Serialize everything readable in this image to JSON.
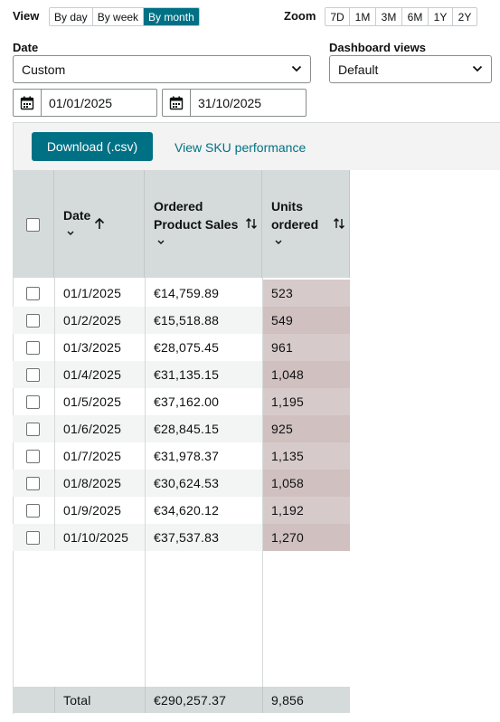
{
  "controls": {
    "view_label": "View",
    "view_options": [
      "By day",
      "By week",
      "By month"
    ],
    "view_active": "By month",
    "zoom_label": "Zoom",
    "zoom_options": [
      "7D",
      "1M",
      "3M",
      "6M",
      "1Y",
      "2Y"
    ],
    "date_label": "Date",
    "date_select_value": "Custom",
    "dashboard_label": "Dashboard views",
    "dashboard_select_value": "Default",
    "start_date": "01/01/2025",
    "end_date": "31/10/2025"
  },
  "toolbar": {
    "download_label": "Download (.csv)",
    "sku_link": "View SKU performance"
  },
  "table": {
    "col_date": "Date",
    "col_sales_line1": "Ordered",
    "col_sales_line2": "Product Sales",
    "col_units_line1": "Units",
    "col_units_line2": "ordered",
    "rows": [
      {
        "date": "01/1/2025",
        "sales": "€14,759.89",
        "units": "523"
      },
      {
        "date": "01/2/2025",
        "sales": "€15,518.88",
        "units": "549"
      },
      {
        "date": "01/3/2025",
        "sales": "€28,075.45",
        "units": "961"
      },
      {
        "date": "01/4/2025",
        "sales": "€31,135.15",
        "units": "1,048"
      },
      {
        "date": "01/5/2025",
        "sales": "€37,162.00",
        "units": "1,195"
      },
      {
        "date": "01/6/2025",
        "sales": "€28,845.15",
        "units": "925"
      },
      {
        "date": "01/7/2025",
        "sales": "€31,978.37",
        "units": "1,135"
      },
      {
        "date": "01/8/2025",
        "sales": "€30,624.53",
        "units": "1,058"
      },
      {
        "date": "01/9/2025",
        "sales": "€34,620.12",
        "units": "1,192"
      },
      {
        "date": "01/10/2025",
        "sales": "€37,537.83",
        "units": "1,270"
      }
    ],
    "total_label": "Total",
    "total_sales": "€290,257.37",
    "total_units": "9,856"
  },
  "colors": {
    "accent": "#007185",
    "header_bg": "#d5dbdb",
    "units_tint": "#cdbdbd"
  }
}
